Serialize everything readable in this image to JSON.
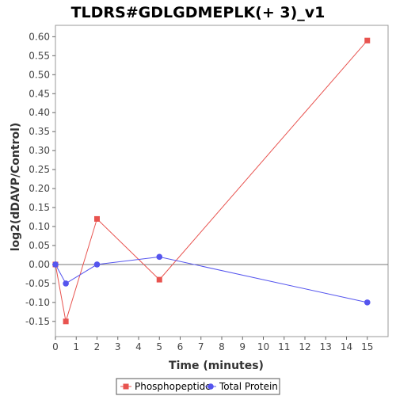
{
  "chart_data": {
    "type": "line",
    "title": "TLDRS#GDLGDMEPLK(+ 3)_v1",
    "xlabel": "Time (minutes)",
    "ylabel": "log2(dDAVP/Control)",
    "xlim": [
      0,
      16
    ],
    "ylim": [
      -0.19,
      0.63
    ],
    "x_ticks": [
      0,
      1,
      2,
      3,
      4,
      5,
      6,
      7,
      8,
      9,
      10,
      11,
      12,
      13,
      14,
      15
    ],
    "y_ticks": [
      -0.15,
      -0.1,
      -0.05,
      0.0,
      0.05,
      0.1,
      0.15,
      0.2,
      0.25,
      0.3,
      0.35,
      0.4,
      0.45,
      0.5,
      0.55,
      0.6
    ],
    "y_tick_labels": [
      "-0.15",
      "-0.10",
      "-0.05",
      "0.00",
      "0.05",
      "0.10",
      "0.15",
      "0.20",
      "0.25",
      "0.30",
      "0.35",
      "0.40",
      "0.45",
      "0.50",
      "0.55",
      "0.60"
    ],
    "grid": false,
    "legend_position": "bottom",
    "series": [
      {
        "name": "Phosphopeptide",
        "color": "#e8534f",
        "marker": "square",
        "x": [
          0,
          0.5,
          2,
          5,
          15
        ],
        "y": [
          0.0,
          -0.15,
          0.12,
          -0.04,
          0.59
        ]
      },
      {
        "name": "Total Protein",
        "color": "#5555ee",
        "marker": "circle",
        "x": [
          0,
          0.5,
          2,
          5,
          15
        ],
        "y": [
          0.0,
          -0.05,
          0.0,
          0.02,
          -0.1
        ]
      }
    ]
  }
}
